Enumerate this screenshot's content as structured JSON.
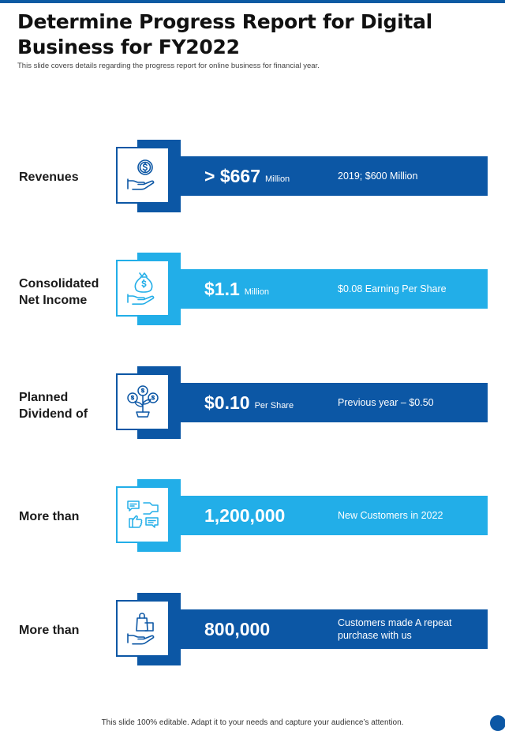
{
  "header": {
    "title": "Determine Progress Report for Digital Business for FY2022",
    "subtitle": "This slide covers details regarding the progress report for online business for financial year."
  },
  "rows": [
    {
      "label": "Revenues",
      "value": "> $667",
      "unit": "Million",
      "note": "2019; $600 Million",
      "icon": "dollar-hand-icon",
      "theme": "dark"
    },
    {
      "label": "Consolidated Net Income",
      "value": "$1.1",
      "unit": "Million",
      "note": "$0.08 Earning Per Share",
      "icon": "money-bag-icon",
      "theme": "light"
    },
    {
      "label": "Planned Dividend of",
      "value": "$0.10",
      "unit": "Per Share",
      "note": "Previous year – $0.50",
      "icon": "money-tree-icon",
      "theme": "dark"
    },
    {
      "label": "More than",
      "value": "1,200,000",
      "unit": "",
      "note": "New Customers in 2022",
      "icon": "customer-feedback-icon",
      "theme": "light"
    },
    {
      "label": "More than",
      "value": "800,000",
      "unit": "",
      "note": "Customers made A repeat purchase with us",
      "icon": "shopping-hand-icon",
      "theme": "dark"
    }
  ],
  "footer": {
    "text": "This slide 100% editable. Adapt it to your needs and capture your audience’s attention."
  },
  "colors": {
    "dark": "#0c57a5",
    "light": "#22aee8"
  }
}
